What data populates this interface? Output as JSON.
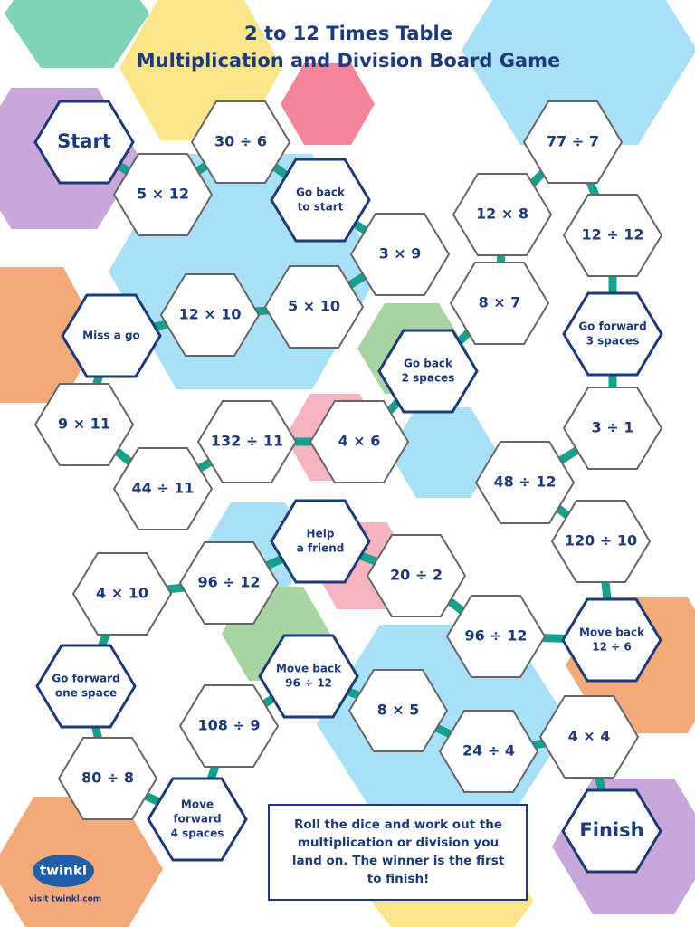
{
  "header": {
    "title": [
      "2 to 12 Times Table",
      "Multiplication and Division Board Game"
    ]
  },
  "tiles": [
    [
      "Start"
    ],
    [
      "5 × 12"
    ],
    [
      "30 ÷ 6"
    ],
    [
      "Go back",
      "to start"
    ],
    [
      "3 × 9"
    ],
    [
      "5 × 10"
    ],
    [
      "12 × 10"
    ],
    [
      "Miss a go"
    ],
    [
      "9 × 11"
    ],
    [
      "44 ÷ 11"
    ],
    [
      "132 ÷ 11"
    ],
    [
      "4 × 6"
    ],
    [
      "Go back",
      "2 spaces"
    ],
    [
      "8 × 7"
    ],
    [
      "12 × 8"
    ],
    [
      "77 ÷ 7"
    ],
    [
      "12 ÷ 12"
    ],
    [
      "Go forward",
      "3 spaces"
    ],
    [
      "3 ÷ 1"
    ],
    [
      "48 ÷ 12"
    ],
    [
      "120 ÷ 10"
    ],
    [
      "Move back",
      "12 ÷ 6"
    ],
    [
      "96 ÷ 12"
    ],
    [
      "20 ÷ 2"
    ],
    [
      "Help",
      "a friend"
    ],
    [
      "96 ÷ 12"
    ],
    [
      "4 × 10"
    ],
    [
      "Go forward",
      "one space"
    ],
    [
      "80 ÷ 8"
    ],
    [
      "Move",
      "forward",
      "4 spaces"
    ],
    [
      "108 ÷ 9"
    ],
    [
      "Move back",
      "96 ÷ 12"
    ],
    [
      "8 × 5"
    ],
    [
      "24 ÷ 4"
    ],
    [
      "4 × 4"
    ],
    [
      "Finish"
    ]
  ],
  "instructions": [
    "Roll the dice and work out the",
    "multiplication or division you",
    "land on. The winner is the first",
    "to finish!"
  ],
  "footer": {
    "logo": "twinkl",
    "link": "visit twinkl.com"
  }
}
